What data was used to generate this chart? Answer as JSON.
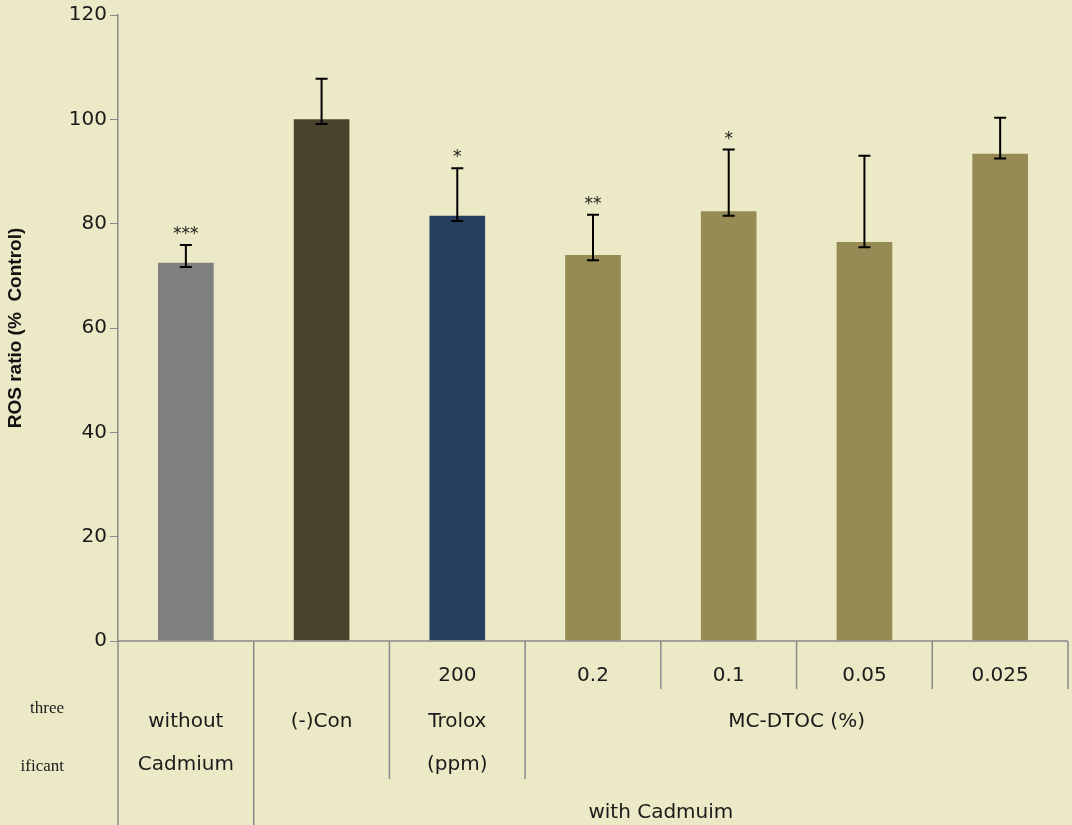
{
  "chart_data": {
    "type": "bar",
    "ylabel": "ROS ratio (%  Control)",
    "categories": [
      null,
      null,
      "200",
      "0.2",
      "0.1",
      "0.05",
      "0.025"
    ],
    "values": [
      72.5,
      100,
      81.5,
      74.0,
      82.4,
      76.5,
      93.4
    ],
    "colors": [
      "#808080",
      "#4a432c",
      "#273e5e",
      "#968b55",
      "#968b55",
      "#968b55",
      "#968b55"
    ],
    "errors": [
      [
        71.7,
        75.9
      ],
      [
        99.1,
        107.8
      ],
      [
        80.5,
        90.6
      ],
      [
        73.0,
        81.7
      ],
      [
        81.5,
        94.2
      ],
      [
        75.5,
        93.0
      ],
      [
        92.5,
        100.3
      ]
    ],
    "ylim": [
      0,
      120
    ],
    "yticks": [
      0,
      20,
      40,
      60,
      80,
      100,
      120
    ],
    "grid": false,
    "legend": false,
    "annotations": [
      {
        "text": "***",
        "y": 75.9
      },
      {
        "text": "*",
        "x": "200",
        "y": 90.6
      },
      {
        "text": "**",
        "x": "0.2",
        "y": 81.7
      },
      {
        "text": "*",
        "x": "0.1",
        "y": 94.2
      },
      "without Cadmium",
      "(-)Con",
      "Trolox (ppm)",
      "MC-DTOC (%)",
      "with Cadmuim",
      "three",
      "ificant"
    ]
  }
}
